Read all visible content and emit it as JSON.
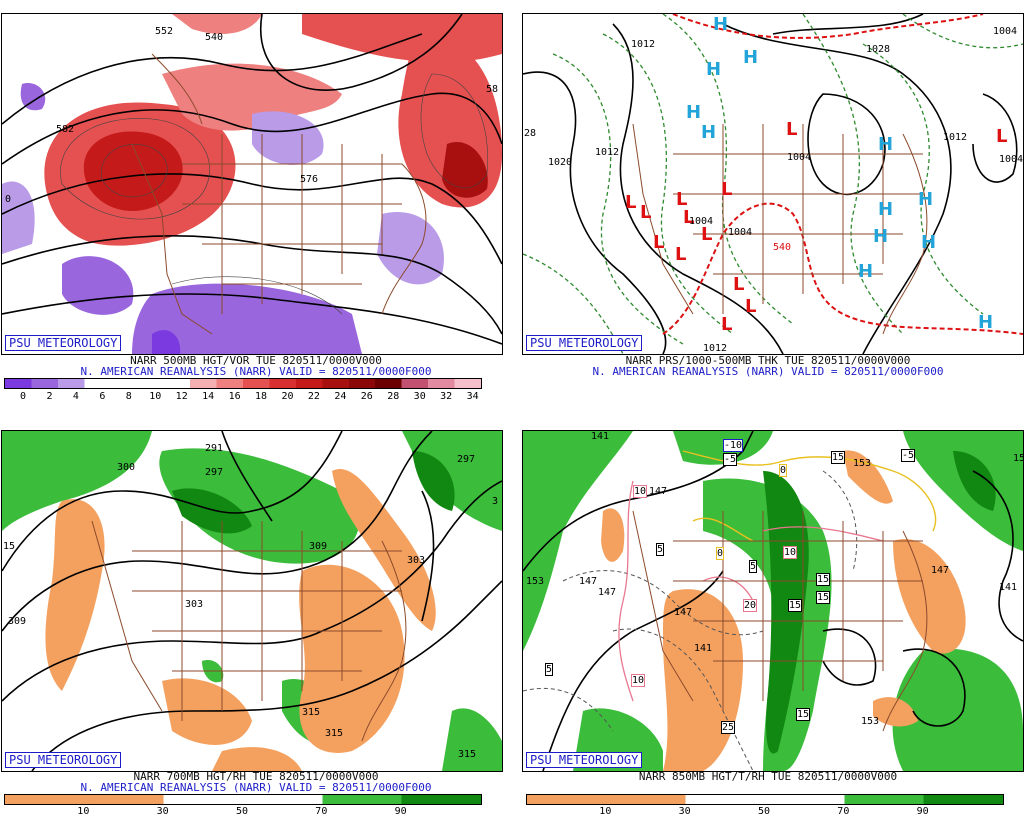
{
  "panels": [
    {
      "badge": "PSU METEOROLOGY",
      "caption1": "NARR 500MB HGT/VOR TUE 820511/0000V000",
      "caption2": "N. AMERICAN REANALYSIS (NARR) VALID = 820511/0000F000",
      "scale_ticks": [
        "0",
        "2",
        "4",
        "6",
        "8",
        "10",
        "12",
        "14",
        "16",
        "18",
        "20",
        "22",
        "24",
        "26",
        "28",
        "30",
        "32",
        "34"
      ],
      "contour_labels": [
        "552",
        "540",
        "582",
        "576",
        "58",
        "0"
      ]
    },
    {
      "badge": "PSU METEOROLOGY",
      "caption1": "NARR PRS/1000-500MB THK TUE 820511/0000V000",
      "caption2": "N. AMERICAN REANALYSIS (NARR) VALID = 820511/0000F000",
      "contour_labels": [
        "1012",
        "1028",
        "1004",
        "28",
        "1020",
        "1012",
        "1004",
        "1004",
        "1004",
        "1012",
        "1004",
        "1012",
        "540"
      ],
      "highs": "H",
      "lows": "L"
    },
    {
      "badge": "PSU METEOROLOGY",
      "caption1": "NARR 700MB HGT/RH TUE 820511/0000V000",
      "caption2": "N. AMERICAN REANALYSIS (NARR) VALID = 820511/0000F000",
      "scale_ticks": [
        "10",
        "30",
        "50",
        "70",
        "90"
      ],
      "contour_labels": [
        "291",
        "297",
        "300",
        "303",
        "309",
        "303",
        "297",
        "309",
        "315",
        "315",
        "315",
        "15",
        "3"
      ]
    },
    {
      "badge": "PSU METEOROLOGY",
      "caption1": "NARR 850MB HGT/T/RH TUE 820511/0000V000",
      "scale_ticks": [
        "10",
        "30",
        "50",
        "70",
        "90"
      ],
      "contour_labels": [
        "141",
        "147",
        "153",
        "147",
        "147",
        "147",
        "141",
        "153",
        "147",
        "141",
        "153",
        "153"
      ],
      "temp_labels": [
        "-10",
        "-5",
        "-5",
        "0",
        "0",
        "10",
        "10",
        "10",
        "20",
        "5",
        "5",
        "5",
        "15",
        "15",
        "15",
        "15",
        "25",
        "15"
      ]
    }
  ],
  "colors": {
    "vor_scale": [
      "#7a3ae0",
      "#9966dd",
      "#b99be8",
      "#ffffff",
      "#ffffff",
      "#ffffff",
      "#ffffff",
      "#f4b0b0",
      "#ee8080",
      "#e55050",
      "#d83030",
      "#c41a1a",
      "#a80f0f",
      "#8c0808",
      "#6c0000",
      "#c25070",
      "#e18aa0",
      "#f4c0cc"
    ],
    "rh_scale": [
      "#f4a160",
      "#f4a160",
      "#ffffff",
      "#ffffff",
      "#3bbc3b",
      "#118811"
    ],
    "high": "#22a4d8",
    "low": "#dd1111",
    "state_lines": "#8b4a2b"
  }
}
